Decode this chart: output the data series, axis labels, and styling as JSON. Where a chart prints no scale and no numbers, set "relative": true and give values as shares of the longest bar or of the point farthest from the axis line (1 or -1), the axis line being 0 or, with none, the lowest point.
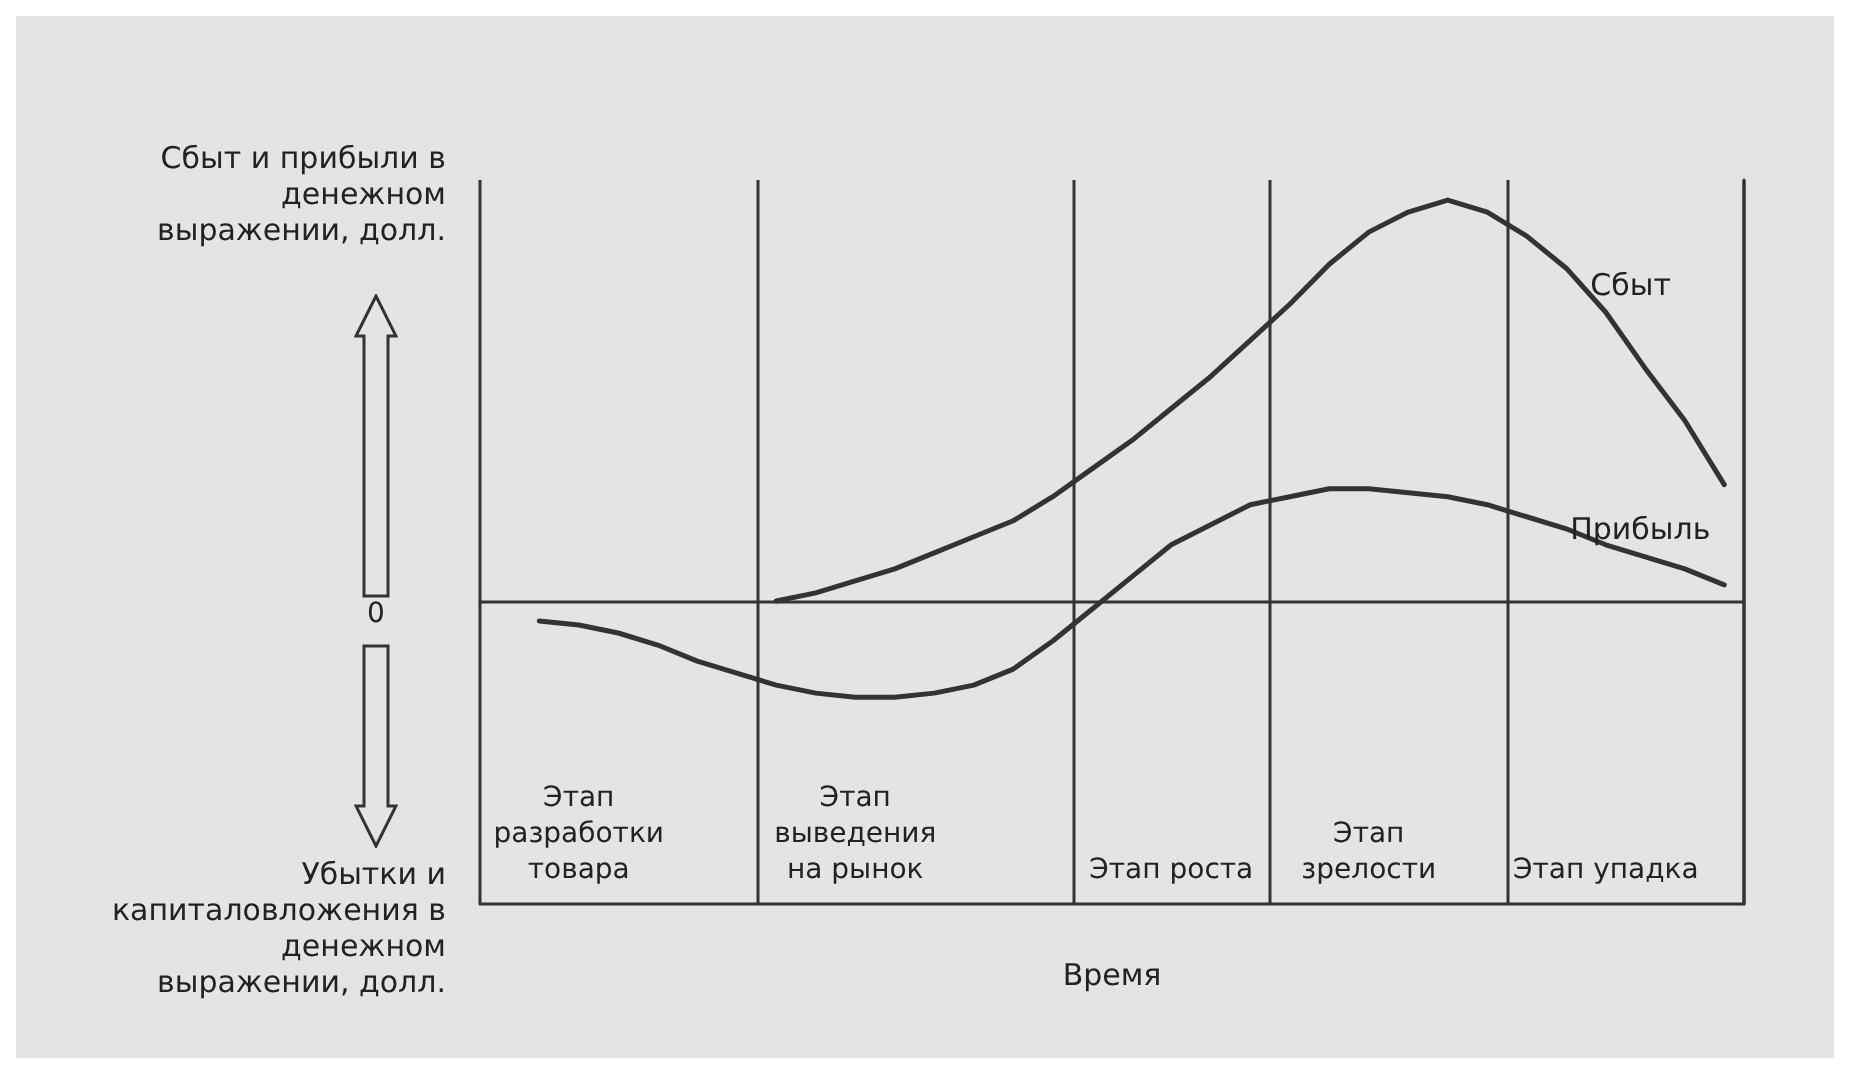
{
  "chart_data": {
    "type": "line",
    "relative": true,
    "xlabel": "Время",
    "ylabel": "Сбыт и прибыли в денежном выражении, долл.",
    "annotations": [
      "Убытки и капиталовложения в денежном выражении, долл.",
      "0"
    ],
    "tick_labels": "x",
    "grid": "x",
    "legend": false,
    "marker": "none",
    "line_style": "solid",
    "categories": [
      null,
      null,
      "Этап разработки товара",
      null,
      null,
      null,
      null,
      null,
      null,
      "Этап выведения на рынок",
      null,
      null,
      null,
      null,
      null,
      null,
      null,
      "Этап роста",
      null,
      null,
      null,
      null,
      "Этап зрелости",
      null,
      null,
      null,
      null,
      null,
      "Этап упадка",
      null,
      null,
      null
    ],
    "series": [
      {
        "name": "Сбыт",
        "color": "#333333",
        "values": [
          null,
          null,
          null,
          null,
          null,
          null,
          null,
          0,
          0.02,
          0.05,
          0.08,
          0.12,
          0.16,
          0.2,
          0.26,
          0.33,
          0.4,
          0.48,
          0.56,
          0.65,
          0.74,
          0.84,
          0.92,
          0.97,
          1,
          0.97,
          0.91,
          0.83,
          0.72,
          0.58,
          0.45,
          0.29
        ]
      },
      {
        "name": "Прибыль",
        "color": "#333333",
        "values": [
          null,
          -0.05,
          -0.06,
          -0.08,
          -0.11,
          -0.15,
          -0.18,
          -0.21,
          -0.23,
          -0.24,
          -0.24,
          -0.23,
          -0.21,
          -0.17,
          -0.1,
          -0.02,
          0.06,
          0.14,
          0.19,
          0.24,
          0.26,
          0.28,
          0.28,
          0.27,
          0.26,
          0.24,
          0.21,
          0.18,
          0.14,
          0.11,
          0.08,
          0.04
        ]
      }
    ]
  }
}
